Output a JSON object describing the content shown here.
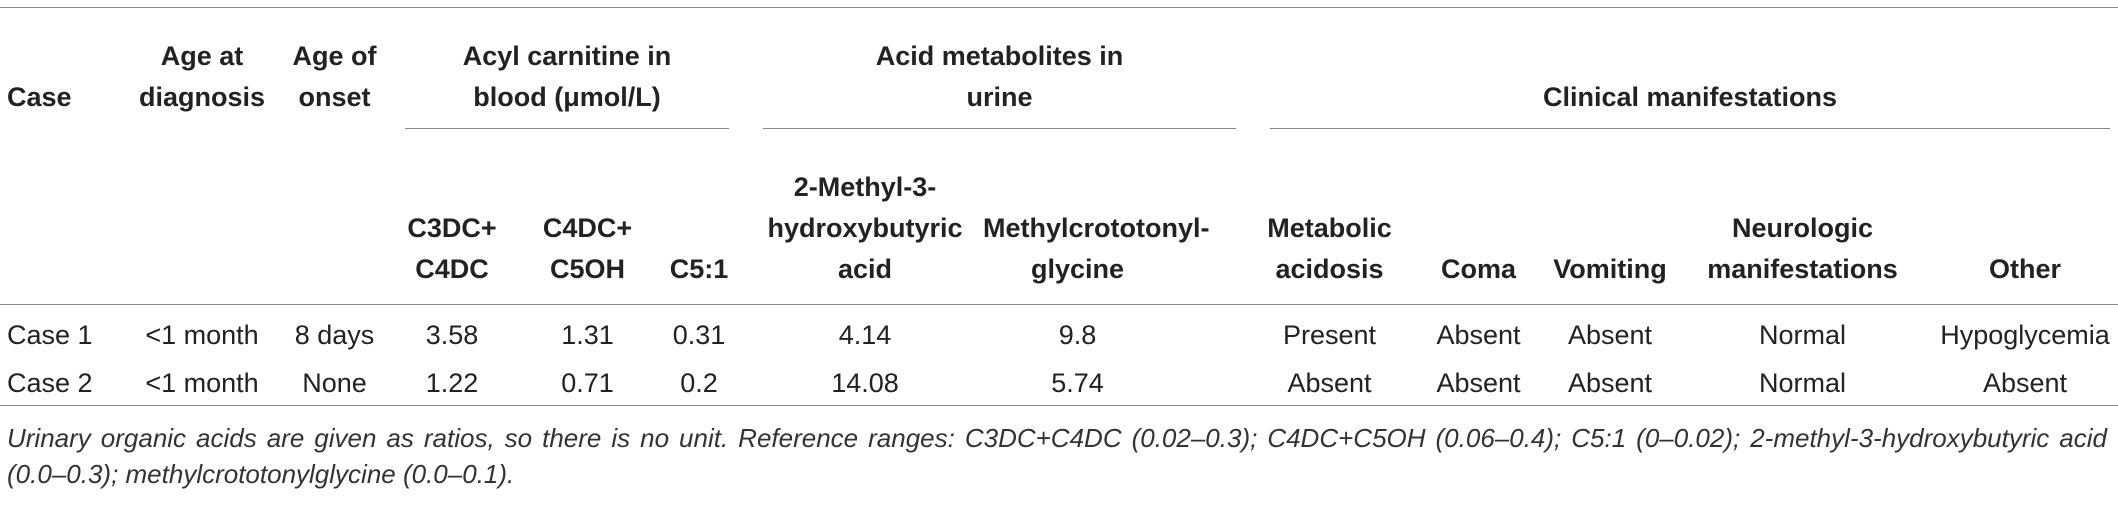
{
  "table": {
    "header": {
      "case": "Case",
      "age_at_diagnosis": "Age at diagnosis",
      "age_of_onset": "Age of onset",
      "groups": [
        "Acyl carnitine in blood (μmol/L)",
        "Acid metabolites in urine",
        "Clinical manifestations"
      ],
      "columns": [
        "C3DC+ C4DC",
        "C4DC+ C5OH",
        "C5:1",
        "2-Methyl-3-hydroxybutyric acid",
        "Methylcrototonyl-glycine",
        "Metabolic acidosis",
        "Coma",
        "Vomiting",
        "Neurologic manifestations",
        "Other"
      ]
    },
    "rows": [
      [
        "Case 1",
        "<1 month",
        "8 days",
        "3.58",
        "1.31",
        "0.31",
        "4.14",
        "9.8",
        "Present",
        "Absent",
        "Absent",
        "Normal",
        "Hypoglycemia"
      ],
      [
        "Case 2",
        "<1 month",
        "None",
        "1.22",
        "0.71",
        "0.2",
        "14.08",
        "5.74",
        "Absent",
        "Absent",
        "Absent",
        "Normal",
        "Absent"
      ]
    ],
    "footnote": "Urinary organic acids are given as ratios, so there is no unit. Reference ranges: C3DC+C4DC (0.02–0.3); C4DC+C5OH (0.06–0.4); C5:1 (0–0.02); 2-methyl-3-hydroxybutyric acid (0.0–0.3); methylcrototonylglycine (0.0–0.1)."
  }
}
